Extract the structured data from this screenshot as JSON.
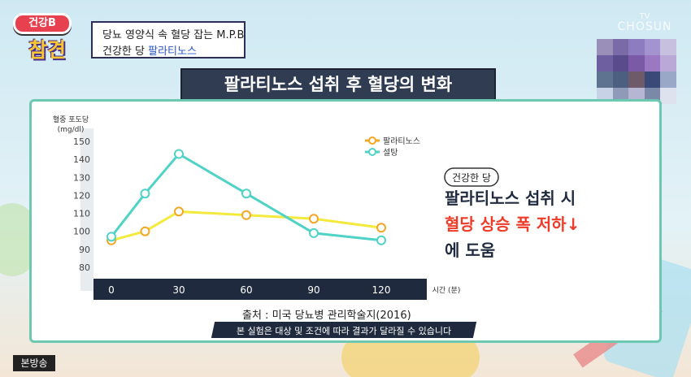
{
  "program": {
    "logo_top": "건강B",
    "logo_bottom": "참견"
  },
  "caption": {
    "line1": "당뇨 영양식 속 혈당 잡는 M.P.B",
    "line2_prefix": "건강한 당 ",
    "line2_highlight": "팔라티노스"
  },
  "watermark": {
    "tv": "TV",
    "channel": "CHOSUN"
  },
  "title": "팔라티노스 섭취 후 혈당의 변화",
  "colors": {
    "palatinose": "#f3ea3d",
    "sugar": "#4fd3c6",
    "accent_red": "#ef3b28"
  },
  "chart_data": {
    "type": "line",
    "ylabel": "혈중 포도당",
    "yunit": "(mg/dl)",
    "xlabel": "시간 (분)",
    "x": [
      0,
      30,
      60,
      90,
      120
    ],
    "ylim": [
      80,
      150
    ],
    "yticks": [
      80,
      90,
      100,
      110,
      120,
      130,
      140,
      150
    ],
    "series": [
      {
        "name": "팔라티노스",
        "color": "#f3ea3d",
        "marker": "#f5a623",
        "values": [
          95,
          100,
          111,
          109,
          107,
          102
        ],
        "x": [
          0,
          15,
          30,
          60,
          90,
          120
        ]
      },
      {
        "name": "설탕",
        "color": "#4fd3c6",
        "marker": "#4fd3c6",
        "values": [
          97,
          121,
          143,
          121,
          99,
          95
        ],
        "x": [
          0,
          15,
          30,
          60,
          90,
          120
        ]
      }
    ],
    "legend_position": "top-right"
  },
  "annotation": {
    "tag": "건강한 당",
    "line1": "팔라티노스 섭취 시",
    "line2": "혈당 상승 폭 저하↓",
    "line3": "에 도움"
  },
  "source": "출처 : 미국 당뇨병 관리학술지(2016)",
  "disclaimer": "본 실험은 대상 및 조건에 따라 결과가 달라질 수 있습니다",
  "broadcast": "본방송"
}
